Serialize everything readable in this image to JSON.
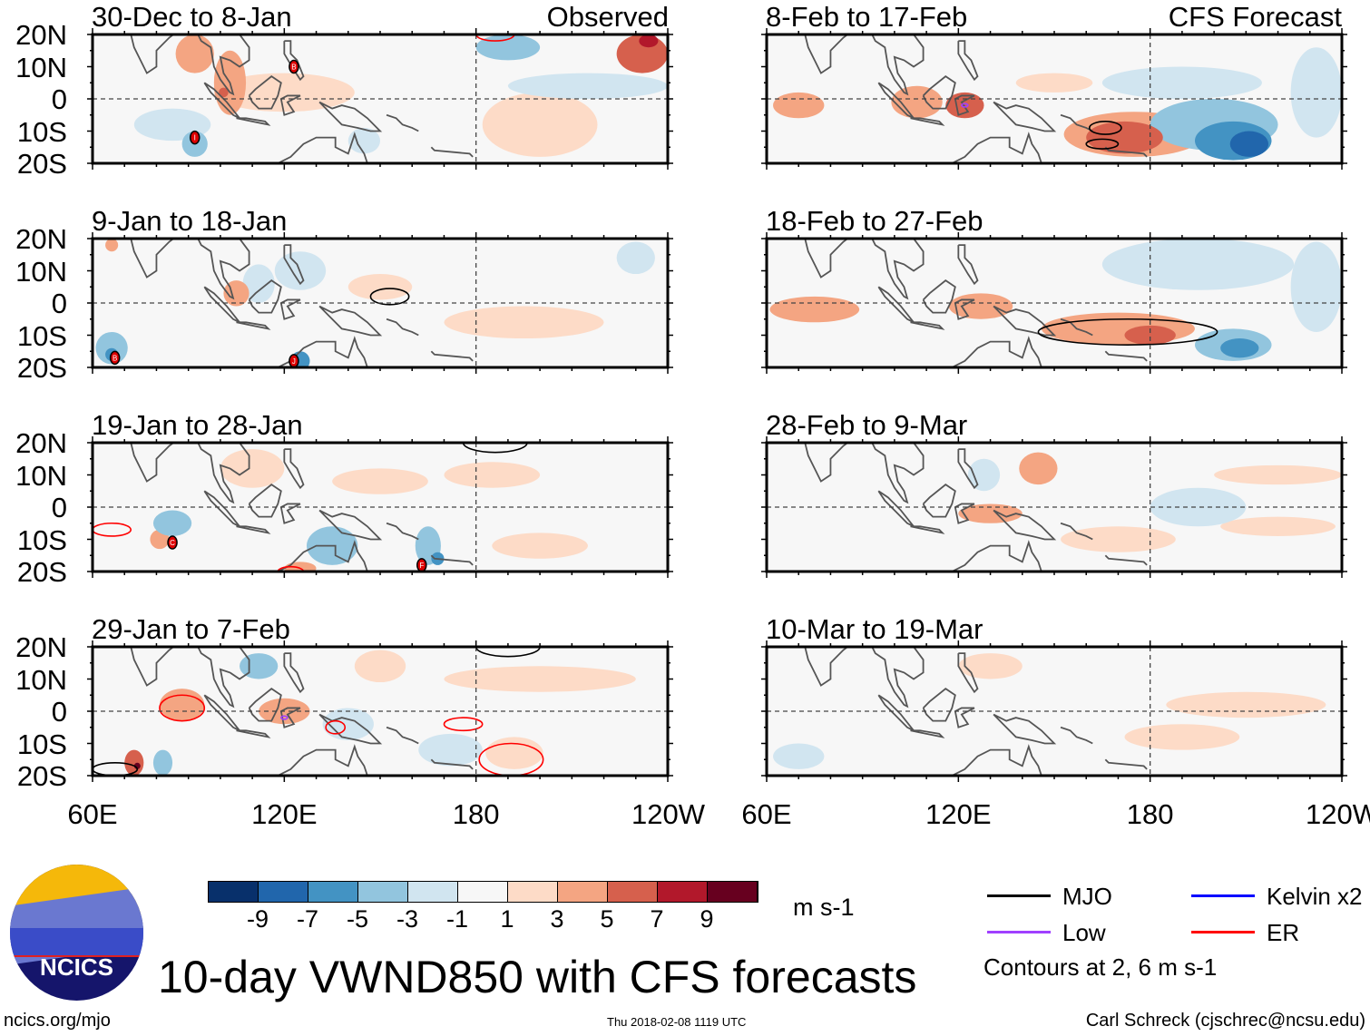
{
  "title": "10-day VWND850 with CFS forecasts",
  "observed_label": "Observed",
  "forecast_label": "CFS Forecast",
  "units": "m s-1",
  "footer": {
    "left": "ncics.org/mjo",
    "center": "Thu 2018-02-08 1119 UTC",
    "right": "Carl Schreck (cjschrec@ncsu.edu)"
  },
  "logo_text": "NCICS",
  "legend": {
    "items": [
      {
        "label": "MJO",
        "color": "#000000"
      },
      {
        "label": "Kelvin x2",
        "color": "#0000ff"
      },
      {
        "label": "Low",
        "color": "#a040ff"
      },
      {
        "label": "ER",
        "color": "#ff0000"
      }
    ],
    "contours_note": "Contours at 2, 6 m s-1"
  },
  "colorbar": {
    "colors": [
      "#08306b",
      "#2166ac",
      "#4393c3",
      "#92c5de",
      "#d1e5f0",
      "#f7f7f7",
      "#fddbc7",
      "#f4a582",
      "#d6604d",
      "#b2182b",
      "#67001f"
    ],
    "labels": [
      "-9",
      "-7",
      "-5",
      "-3",
      "-1",
      "1",
      "3",
      "5",
      "7",
      "9"
    ]
  },
  "lat_labels": [
    "20N",
    "10N",
    "0",
    "10S",
    "20S"
  ],
  "lon_labels": [
    "60E",
    "120E",
    "180",
    "120W"
  ],
  "chart_data": {
    "type": "heatmap",
    "variable": "850-hPa meridional wind anomaly",
    "lon_range": [
      60,
      240
    ],
    "lat_range": [
      -20,
      20
    ],
    "panels": [
      {
        "title": "30-Dec to 8-Jan",
        "column": "observed",
        "features": [
          [
            92,
            14,
            6,
            6,
            3
          ],
          [
            103,
            5,
            5,
            10,
            4
          ],
          [
            101,
            2,
            1.5,
            1.5,
            6
          ],
          [
            120,
            2,
            22,
            6,
            2
          ],
          [
            200,
            -8,
            18,
            10,
            2
          ],
          [
            232,
            14,
            8,
            6,
            5
          ],
          [
            234,
            18,
            3,
            2,
            7
          ],
          [
            85,
            -8,
            12,
            5,
            -2
          ],
          [
            92,
            -14,
            4,
            4,
            -4
          ],
          [
            190,
            16,
            10,
            4,
            -4
          ],
          [
            215,
            4,
            25,
            4,
            -2
          ],
          [
            145,
            -13,
            5,
            4,
            -3
          ]
        ],
        "storms": [
          {
            "lon": 123,
            "lat": 10,
            "letter": "B"
          },
          {
            "lon": 92,
            "lat": -12,
            "letter": "I"
          }
        ],
        "contours": [
          {
            "type": "ER",
            "lon": 186,
            "lat": 20,
            "rx": 6,
            "ry": 2
          }
        ]
      },
      {
        "title": "9-Jan to 18-Jan",
        "column": "observed",
        "features": [
          [
            66,
            -14,
            5,
            5,
            -5
          ],
          [
            66,
            -16,
            2,
            2,
            -7
          ],
          [
            105,
            3,
            4,
            4,
            4
          ],
          [
            112,
            6,
            5,
            6,
            -3
          ],
          [
            125,
            -18,
            3,
            3,
            -6
          ],
          [
            150,
            5,
            10,
            4,
            2
          ],
          [
            195,
            -6,
            25,
            5,
            2
          ],
          [
            125,
            10,
            8,
            6,
            -2
          ],
          [
            66,
            18,
            2,
            2,
            4
          ],
          [
            230,
            14,
            6,
            5,
            -2
          ]
        ],
        "storms": [
          {
            "lon": 67,
            "lat": -17,
            "letter": "B"
          },
          {
            "lon": 123,
            "lat": -18,
            "letter": "J"
          }
        ],
        "contours": [
          {
            "type": "MJO",
            "lon": 153,
            "lat": 2,
            "rx": 6,
            "ry": 2.5
          }
        ]
      },
      {
        "title": "19-Jan to 28-Jan",
        "column": "observed",
        "features": [
          [
            85,
            -5,
            6,
            4,
            -4
          ],
          [
            81,
            -10,
            3,
            3,
            3
          ],
          [
            135,
            -12,
            8,
            6,
            -5
          ],
          [
            165,
            -12,
            4,
            6,
            -5
          ],
          [
            168,
            -16,
            2,
            2,
            -7
          ],
          [
            110,
            12,
            10,
            6,
            2
          ],
          [
            150,
            8,
            15,
            4,
            2
          ],
          [
            185,
            10,
            15,
            4,
            2
          ],
          [
            125,
            -19,
            5,
            2,
            3
          ],
          [
            200,
            -12,
            15,
            4,
            2
          ]
        ],
        "storms": [
          {
            "lon": 85,
            "lat": -11,
            "letter": "C"
          },
          {
            "lon": 163,
            "lat": -18,
            "letter": "F"
          }
        ],
        "contours": [
          {
            "type": "ER",
            "lon": 66,
            "lat": -7,
            "rx": 6,
            "ry": 2
          },
          {
            "type": "ER",
            "lon": 122,
            "lat": -20,
            "rx": 4,
            "ry": 1.5
          },
          {
            "type": "MJO",
            "lon": 186,
            "lat": 20,
            "rx": 10,
            "ry": 3
          }
        ]
      },
      {
        "title": "29-Jan to 7-Feb",
        "column": "observed",
        "features": [
          [
            88,
            2,
            7,
            5,
            4
          ],
          [
            73,
            -16,
            3,
            4,
            6
          ],
          [
            74,
            -17,
            1,
            1,
            9
          ],
          [
            82,
            -16,
            3,
            4,
            -5
          ],
          [
            112,
            14,
            6,
            4,
            -4
          ],
          [
            120,
            0,
            8,
            4,
            3
          ],
          [
            140,
            -4,
            8,
            5,
            -3
          ],
          [
            172,
            -12,
            10,
            5,
            -3
          ],
          [
            200,
            10,
            30,
            4,
            2
          ],
          [
            192,
            -13,
            9,
            5,
            2
          ],
          [
            150,
            14,
            8,
            5,
            2
          ]
        ],
        "storms": [],
        "contours": [
          {
            "type": "ER",
            "lon": 88,
            "lat": 1,
            "rx": 7,
            "ry": 4
          },
          {
            "type": "ER",
            "lon": 136,
            "lat": -5,
            "rx": 3,
            "ry": 2
          },
          {
            "type": "ER",
            "lon": 176,
            "lat": -4,
            "rx": 6,
            "ry": 2
          },
          {
            "type": "ER",
            "lon": 191,
            "lat": -15,
            "rx": 10,
            "ry": 5
          },
          {
            "type": "MJO",
            "lon": 67,
            "lat": -18,
            "rx": 7,
            "ry": 2
          },
          {
            "type": "MJO",
            "lon": 190,
            "lat": 20,
            "rx": 10,
            "ry": 3
          },
          {
            "type": "Low",
            "lon": 120,
            "lat": -2,
            "rx": 1,
            "ry": 0.5
          }
        ]
      },
      {
        "title": "8-Feb to 17-Feb",
        "column": "forecast",
        "features": [
          [
            70,
            -2,
            8,
            4,
            4
          ],
          [
            107,
            -1,
            8,
            5,
            3
          ],
          [
            122,
            -2,
            6,
            4,
            5
          ],
          [
            175,
            -11,
            22,
            7,
            4
          ],
          [
            172,
            -12,
            12,
            5,
            6
          ],
          [
            200,
            -8,
            20,
            8,
            -4
          ],
          [
            206,
            -13,
            12,
            6,
            -6
          ],
          [
            211,
            -14,
            6,
            4,
            -9
          ],
          [
            190,
            5,
            25,
            5,
            -2
          ],
          [
            232,
            2,
            8,
            14,
            -2
          ],
          [
            150,
            5,
            12,
            3,
            2
          ]
        ],
        "storms": [],
        "contours": [
          {
            "type": "MJO",
            "lon": 166,
            "lat": -9,
            "rx": 5,
            "ry": 2
          },
          {
            "type": "MJO",
            "lon": 165,
            "lat": -14,
            "rx": 5,
            "ry": 1.5
          },
          {
            "type": "Low",
            "lon": 122,
            "lat": -2,
            "rx": 1,
            "ry": 0.5
          }
        ]
      },
      {
        "title": "18-Feb to 27-Feb",
        "column": "forecast",
        "features": [
          [
            75,
            -2,
            14,
            4,
            4
          ],
          [
            127,
            -1,
            10,
            4,
            3
          ],
          [
            170,
            -8,
            24,
            5,
            3
          ],
          [
            180,
            -10,
            8,
            3,
            5
          ],
          [
            206,
            -13,
            12,
            5,
            -4
          ],
          [
            208,
            -14,
            6,
            3,
            -6
          ],
          [
            195,
            12,
            30,
            8,
            -2
          ],
          [
            232,
            5,
            8,
            14,
            -2
          ]
        ],
        "storms": [],
        "contours": [
          {
            "type": "MJO",
            "lon": 173,
            "lat": -9,
            "rx": 28,
            "ry": 4
          }
        ]
      },
      {
        "title": "28-Feb to 9-Mar",
        "column": "forecast",
        "features": [
          [
            130,
            -2,
            10,
            3,
            3
          ],
          [
            145,
            12,
            6,
            5,
            4
          ],
          [
            128,
            10,
            5,
            5,
            -3
          ],
          [
            170,
            -10,
            18,
            4,
            2
          ],
          [
            220,
            10,
            20,
            3,
            2
          ],
          [
            220,
            -6,
            18,
            3,
            2
          ],
          [
            195,
            0,
            15,
            6,
            -2
          ]
        ],
        "storms": [],
        "contours": []
      },
      {
        "title": "10-Mar to 19-Mar",
        "column": "forecast",
        "features": [
          [
            210,
            2,
            25,
            4,
            2
          ],
          [
            190,
            -8,
            18,
            4,
            2
          ],
          [
            70,
            -14,
            8,
            4,
            -2
          ],
          [
            130,
            14,
            10,
            4,
            2
          ]
        ],
        "storms": [],
        "contours": []
      }
    ]
  }
}
